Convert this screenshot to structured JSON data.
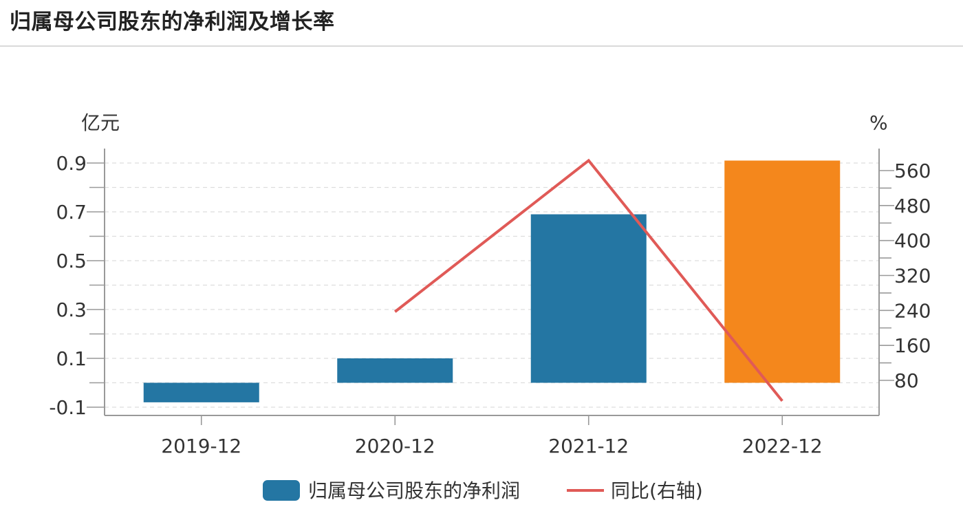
{
  "title": "归属母公司股东的净利润及增长率",
  "chart_data": {
    "type": "bar",
    "categories": [
      "2019-12",
      "2020-12",
      "2021-12",
      "2022-12"
    ],
    "series": [
      {
        "name": "归属母公司股东的净利润",
        "kind": "bar",
        "axis": "left",
        "values": [
          -0.08,
          0.1,
          0.69,
          0.91
        ],
        "bar_colors": [
          "#2476a3",
          "#2476a3",
          "#2476a3",
          "#f4871c"
        ]
      },
      {
        "name": "同比(右轴)",
        "kind": "line",
        "axis": "right",
        "color": "#e05a57",
        "values": [
          null,
          237,
          583,
          33
        ]
      }
    ],
    "y_left": {
      "unit": "亿元",
      "range": [
        -0.1,
        0.9
      ],
      "ticks": [
        -0.1,
        0.1,
        0.3,
        0.5,
        0.7,
        0.9
      ],
      "tick_labels": [
        "-0.1",
        "0.1",
        "0.3",
        "0.5",
        "0.7",
        "0.9"
      ]
    },
    "y_right": {
      "unit": "%",
      "ticks": [
        80,
        160,
        240,
        320,
        400,
        480,
        560
      ],
      "tick_labels": [
        "80",
        "160",
        "240",
        "320",
        "400",
        "480",
        "560"
      ]
    },
    "legend": {
      "position": "bottom-center",
      "items": [
        "归属母公司股东的净利润",
        "同比(右轴)"
      ]
    },
    "colors": {
      "bar": "#2476a3",
      "highlight_bar": "#f4871c",
      "line": "#e05a57",
      "axis": "#999999",
      "grid": "#dddddd"
    }
  }
}
